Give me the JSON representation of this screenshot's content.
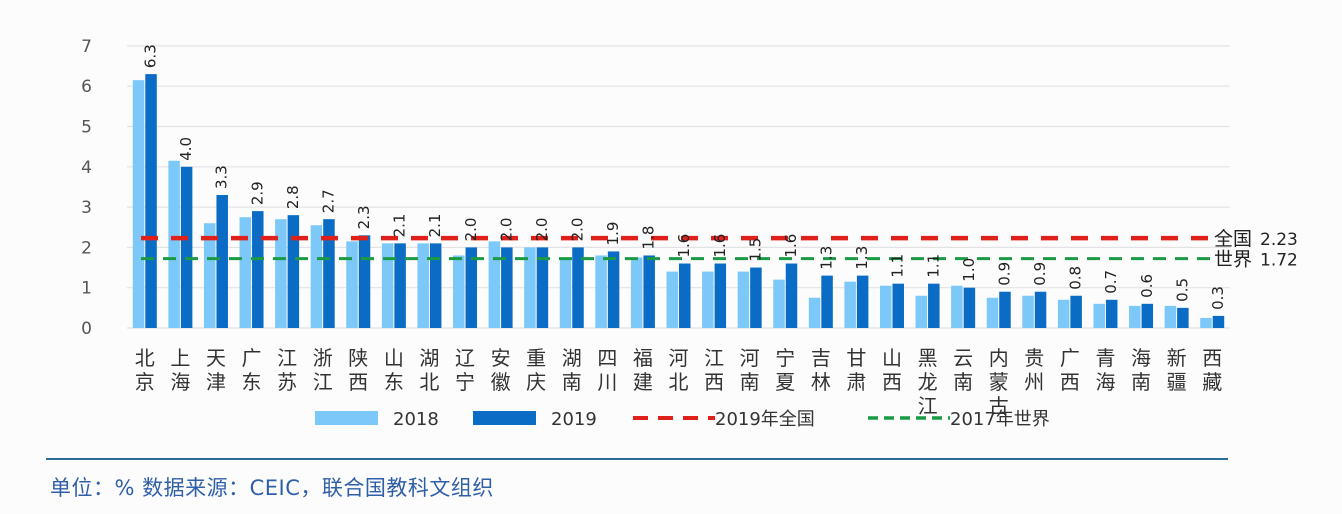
{
  "chart_data": {
    "type": "bar",
    "title": "",
    "xlabel": "",
    "ylabel": "",
    "ylim": [
      0,
      7
    ],
    "yticks": [
      0,
      1,
      2,
      3,
      4,
      5,
      6,
      7
    ],
    "grid": true,
    "legend_position": "bottom",
    "categories": [
      "北京",
      "上海",
      "天津",
      "广东",
      "江苏",
      "浙江",
      "陕西",
      "山东",
      "湖北",
      "辽宁",
      "安徽",
      "重庆",
      "湖南",
      "四川",
      "福建",
      "河北",
      "江西",
      "河南",
      "宁夏",
      "吉林",
      "甘肃",
      "山西",
      "黑龙江",
      "云南",
      "内蒙古",
      "贵州",
      "广西",
      "青海",
      "海南",
      "新疆",
      "西藏"
    ],
    "series": [
      {
        "name": "2018",
        "type": "bar",
        "color": "#7cc8f8",
        "values": [
          6.15,
          4.15,
          2.6,
          2.75,
          2.7,
          2.55,
          2.15,
          2.1,
          2.1,
          1.8,
          2.15,
          2.0,
          1.75,
          1.8,
          1.75,
          1.4,
          1.4,
          1.4,
          1.2,
          0.75,
          1.15,
          1.05,
          0.8,
          1.05,
          0.75,
          0.8,
          0.7,
          0.6,
          0.55,
          0.55,
          0.25
        ]
      },
      {
        "name": "2019",
        "type": "bar",
        "color": "#0a6cc4",
        "values": [
          6.3,
          4.0,
          3.3,
          2.9,
          2.8,
          2.7,
          2.3,
          2.1,
          2.1,
          2.0,
          2.0,
          2.0,
          2.0,
          1.9,
          1.8,
          1.6,
          1.6,
          1.5,
          1.6,
          1.3,
          1.3,
          1.1,
          1.1,
          1.0,
          0.9,
          0.9,
          0.8,
          0.7,
          0.6,
          0.5,
          0.3
        ],
        "data_labels": [
          "6.3",
          "4.0",
          "3.3",
          "2.9",
          "2.8",
          "2.7",
          "2.3",
          "2.1",
          "2.1",
          "2.0",
          "2.0",
          "2.0",
          "2.0",
          "1.9",
          "1.8",
          "1.6",
          "1.6",
          "1.5",
          "1.6",
          "1.3",
          "1.3",
          "1.1",
          "1.1",
          "1.0",
          "0.9",
          "0.9",
          "0.8",
          "0.7",
          "0.6",
          "0.5",
          "0.3"
        ]
      },
      {
        "name": "2019年全国",
        "type": "reference_line",
        "color": "#e0201b",
        "value": 2.23,
        "annotation": "全国 2.23"
      },
      {
        "name": "2017年世界",
        "type": "reference_line",
        "color": "#1a9a45",
        "value": 1.72,
        "annotation": "世界 1.72"
      }
    ],
    "annotations": [
      {
        "label": "全国",
        "value": "2.23"
      },
      {
        "label": "世界",
        "value": "1.72"
      }
    ]
  },
  "legend": {
    "items": [
      {
        "label": "2018",
        "kind": "bar",
        "color": "#7cc8f8"
      },
      {
        "label": "2019",
        "kind": "bar",
        "color": "#0a6cc4"
      },
      {
        "label": "2019年全国",
        "kind": "dashed",
        "color": "#e0201b"
      },
      {
        "label": "2017年世界",
        "kind": "dashed",
        "color": "#1a9a45"
      }
    ]
  },
  "footer": {
    "text": "单位：% 数据来源：CEIC，联合国教科文组织"
  },
  "colors": {
    "grid": "#e3e3e6",
    "axis_text": "#555555",
    "footer_rule": "#2a6e95",
    "footer_text": "#2f5fa8"
  }
}
